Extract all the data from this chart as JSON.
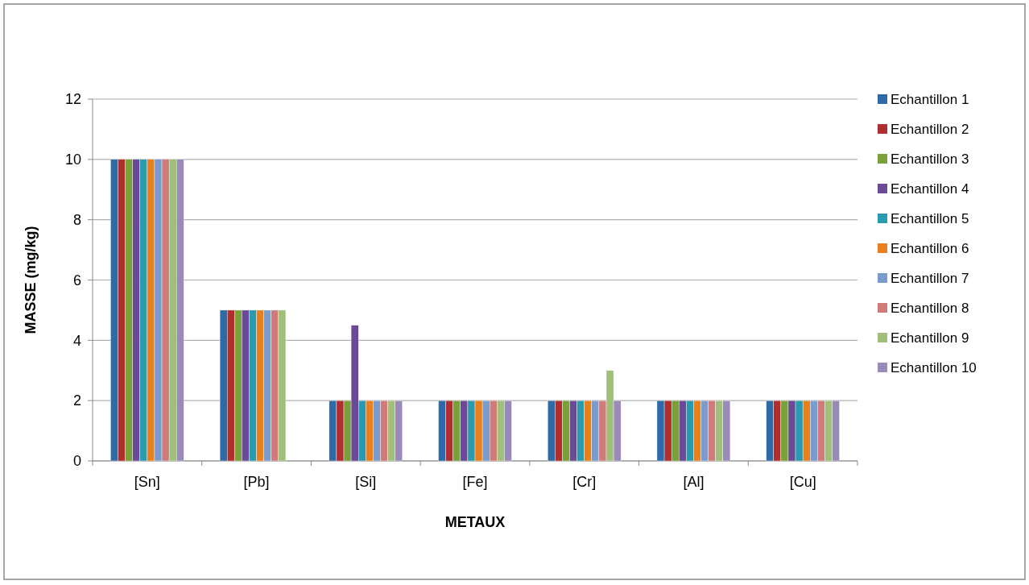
{
  "chart_data": {
    "type": "bar",
    "xlabel": "METAUX",
    "ylabel": "MASSE (mg/kg)",
    "categories": [
      "[Sn]",
      "[Pb]",
      "[Si]",
      "[Fe]",
      "[Cr]",
      "[Al]",
      "[Cu]"
    ],
    "series": [
      {
        "name": "Echantillon 1",
        "color": "#2e6aa8",
        "values": [
          10,
          5,
          2,
          2,
          2,
          2,
          2
        ]
      },
      {
        "name": "Echantillon 2",
        "color": "#b02e2e",
        "values": [
          10,
          5,
          2,
          2,
          2,
          2,
          2
        ]
      },
      {
        "name": "Echantillon 3",
        "color": "#7aa03a",
        "values": [
          10,
          5,
          2,
          2,
          2,
          2,
          2
        ]
      },
      {
        "name": "Echantillon 4",
        "color": "#6a4a96",
        "values": [
          10,
          5,
          4.5,
          2,
          2,
          2,
          2
        ]
      },
      {
        "name": "Echantillon 5",
        "color": "#2a9ab0",
        "values": [
          10,
          5,
          2,
          2,
          2,
          2,
          2
        ]
      },
      {
        "name": "Echantillon 6",
        "color": "#e8801e",
        "values": [
          10,
          5,
          2,
          2,
          2,
          2,
          2
        ]
      },
      {
        "name": "Echantillon 7",
        "color": "#7a9ccc",
        "values": [
          10,
          5,
          2,
          2,
          2,
          2,
          2
        ]
      },
      {
        "name": "Echantillon 8",
        "color": "#d07a7a",
        "values": [
          10,
          5,
          2,
          2,
          2,
          2,
          2
        ]
      },
      {
        "name": "Echantillon 9",
        "color": "#a0c07a",
        "values": [
          10,
          5,
          2,
          2,
          3,
          2,
          2
        ]
      },
      {
        "name": "Echantillon 10",
        "color": "#9a8ab8",
        "values": [
          10,
          null,
          2,
          2,
          2,
          2,
          2
        ]
      }
    ],
    "ylim": [
      0,
      12
    ],
    "yticks": [
      0,
      2,
      4,
      6,
      8,
      10,
      12
    ],
    "grid": "y",
    "legend": "right"
  }
}
